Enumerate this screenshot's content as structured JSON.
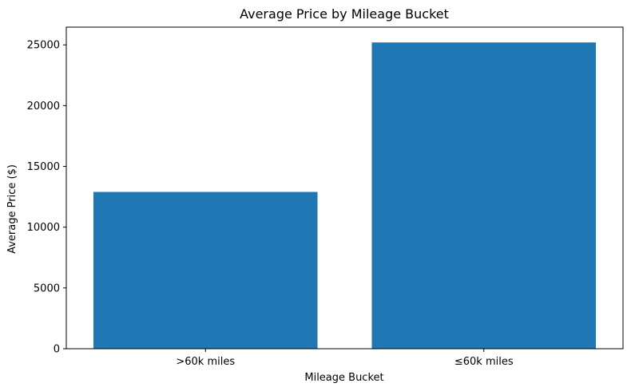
{
  "chart_data": {
    "type": "bar",
    "title": "Average Price by Mileage Bucket",
    "xlabel": "Mileage Bucket",
    "ylabel": "Average Price ($)",
    "categories": [
      ">60k miles",
      "≤60k miles"
    ],
    "values": [
      12900,
      25200
    ],
    "ylim": [
      0,
      26460
    ],
    "yticks": [
      "0",
      "5000",
      "10000",
      "15000",
      "20000",
      "25000"
    ],
    "grid": false,
    "legend": "none",
    "bar_color": "#1f77b4"
  }
}
